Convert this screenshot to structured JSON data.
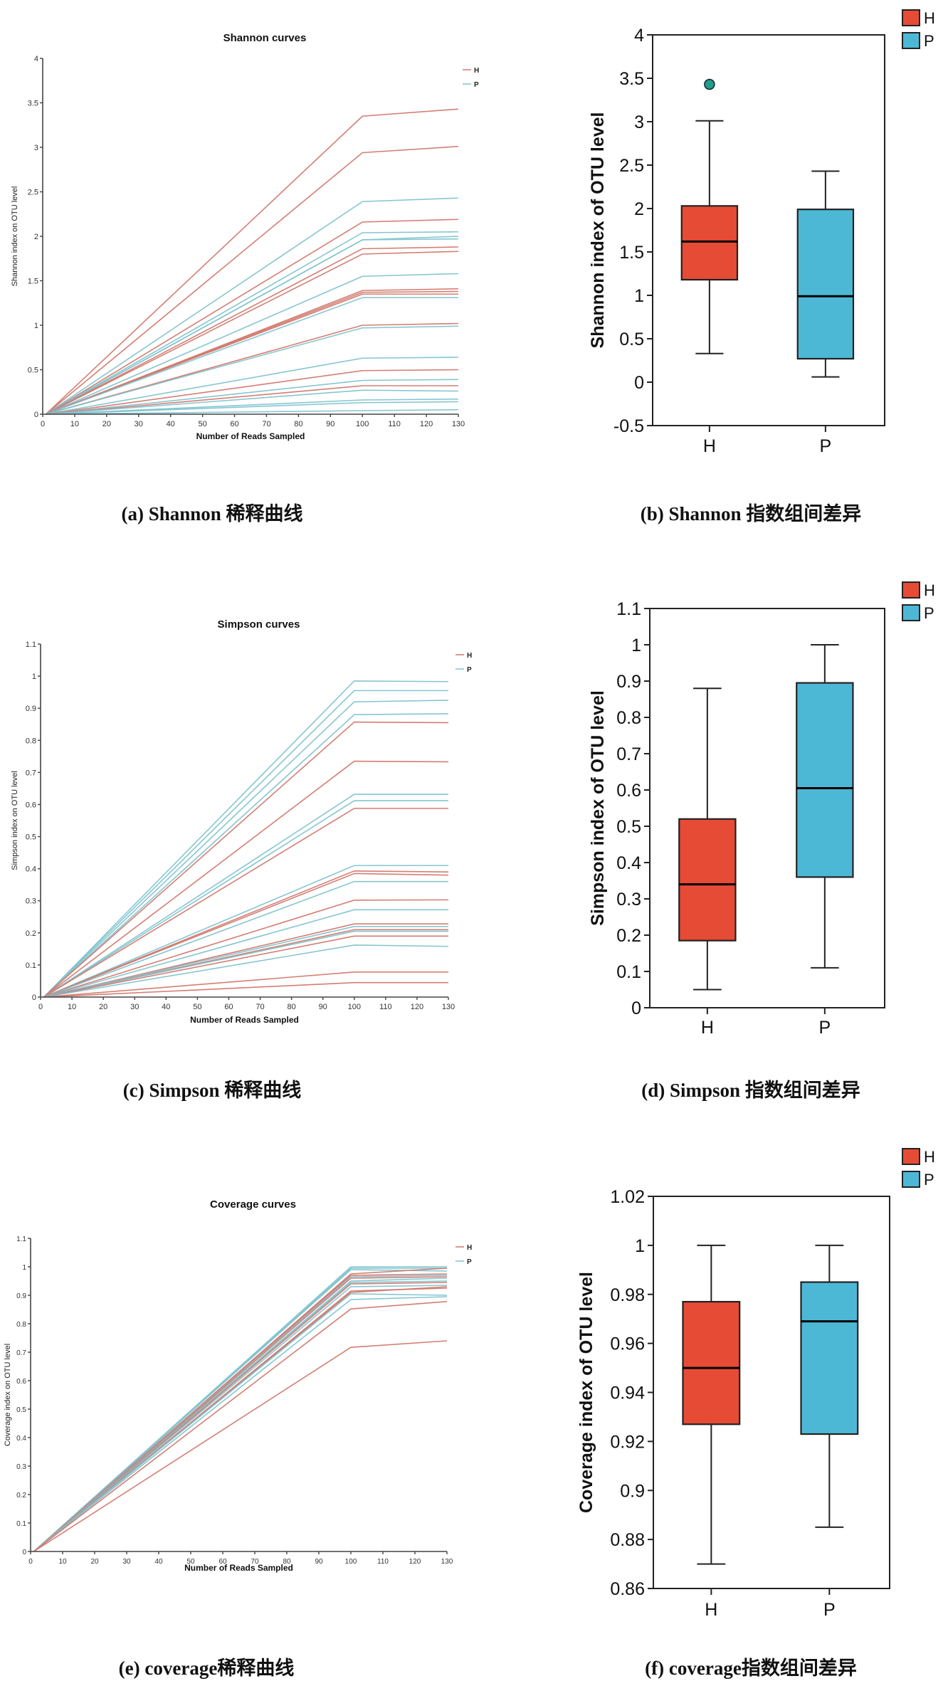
{
  "colors": {
    "H": "#e64b35",
    "P": "#4db8d6",
    "H_line": "#d2776c",
    "P_line": "#7fc3cf",
    "outlier": "#1f9e89",
    "axis": "#222222"
  },
  "captions": {
    "a": "(a) Shannon 稀释曲线",
    "b": "(b) Shannon 指数组间差异",
    "c": "(c) Simpson 稀释曲线",
    "d": "(d) Simpson 指数组间差异",
    "e": "(e) coverage稀释曲线",
    "f": "(f) coverage指数组间差异"
  },
  "chart_data": [
    {
      "id": "a",
      "type": "line",
      "title": "Shannon curves",
      "xlabel": "Number of Reads Sampled",
      "ylabel": "Shannon index on OTU level",
      "xlim": [
        0,
        130
      ],
      "ylim": [
        0,
        4
      ],
      "xticks": [
        0,
        10,
        20,
        30,
        40,
        50,
        60,
        70,
        80,
        90,
        100,
        110,
        120,
        130
      ],
      "yticks": [
        0,
        0.5,
        1,
        1.5,
        2,
        2.5,
        3,
        3.5,
        4
      ],
      "ytick_labels": [
        "0",
        "0.5",
        "1",
        "1.5",
        "2",
        "2.5",
        "3",
        "3.5",
        "4"
      ],
      "legend": [
        "H",
        "P"
      ],
      "legend_position": "top-right",
      "x": [
        1,
        100,
        130
      ],
      "series": [
        {
          "group": "H",
          "values": [
            0,
            3.35,
            3.43
          ]
        },
        {
          "group": "H",
          "values": [
            0,
            2.94,
            3.01
          ]
        },
        {
          "group": "P",
          "values": [
            0,
            2.39,
            2.43
          ]
        },
        {
          "group": "H",
          "values": [
            0,
            2.16,
            2.19
          ]
        },
        {
          "group": "P",
          "values": [
            0,
            2.04,
            2.05
          ]
        },
        {
          "group": "P",
          "values": [
            0,
            1.96,
            2.0
          ]
        },
        {
          "group": "P",
          "values": [
            0,
            1.96,
            1.97
          ]
        },
        {
          "group": "H",
          "values": [
            0,
            1.86,
            1.88
          ]
        },
        {
          "group": "H",
          "values": [
            0,
            1.8,
            1.83
          ]
        },
        {
          "group": "P",
          "values": [
            0,
            1.55,
            1.58
          ]
        },
        {
          "group": "H",
          "values": [
            0,
            1.39,
            1.41
          ]
        },
        {
          "group": "H",
          "values": [
            0,
            1.37,
            1.38
          ]
        },
        {
          "group": "H",
          "values": [
            0,
            1.35,
            1.35
          ]
        },
        {
          "group": "P",
          "values": [
            0,
            1.31,
            1.31
          ]
        },
        {
          "group": "H",
          "values": [
            0,
            1.0,
            1.02
          ]
        },
        {
          "group": "P",
          "values": [
            0,
            0.97,
            0.99
          ]
        },
        {
          "group": "P",
          "values": [
            0,
            0.63,
            0.64
          ]
        },
        {
          "group": "H",
          "values": [
            0,
            0.49,
            0.5
          ]
        },
        {
          "group": "P",
          "values": [
            0,
            0.38,
            0.39
          ]
        },
        {
          "group": "H",
          "values": [
            0,
            0.32,
            0.32
          ]
        },
        {
          "group": "P",
          "values": [
            0,
            0.27,
            0.26
          ]
        },
        {
          "group": "P",
          "values": [
            0,
            0.16,
            0.17
          ]
        },
        {
          "group": "P",
          "values": [
            0,
            0.13,
            0.14
          ]
        },
        {
          "group": "P",
          "values": [
            0,
            0.04,
            0.05
          ]
        }
      ]
    },
    {
      "id": "b",
      "type": "box",
      "title": "",
      "xlabel": "",
      "ylabel": "Shannon index of OTU level",
      "ylim": [
        -0.5,
        4
      ],
      "yticks": [
        -0.5,
        0,
        0.5,
        1,
        1.5,
        2,
        2.5,
        3,
        3.5,
        4
      ],
      "ytick_labels": [
        "-0.5",
        "0",
        "0.5",
        "1",
        "1.5",
        "2",
        "2.5",
        "3",
        "3.5",
        "4"
      ],
      "categories": [
        "H",
        "P"
      ],
      "legend": [
        "H",
        "P"
      ],
      "legend_position": "top-right",
      "boxes": [
        {
          "group": "H",
          "whisker_low": 0.33,
          "q1": 1.18,
          "median": 1.62,
          "q3": 2.03,
          "whisker_high": 3.01,
          "outliers": [
            3.43
          ]
        },
        {
          "group": "P",
          "whisker_low": 0.06,
          "q1": 0.27,
          "median": 0.99,
          "q3": 1.99,
          "whisker_high": 2.43,
          "outliers": []
        }
      ]
    },
    {
      "id": "c",
      "type": "line",
      "title": "Simpson curves",
      "xlabel": "Number of Reads Sampled",
      "ylabel": "Simpson index on OTU level",
      "xlim": [
        0,
        130
      ],
      "ylim": [
        0,
        1.1
      ],
      "xticks": [
        0,
        10,
        20,
        30,
        40,
        50,
        60,
        70,
        80,
        90,
        100,
        110,
        120,
        130
      ],
      "yticks": [
        0,
        0.1,
        0.2,
        0.3,
        0.4,
        0.5,
        0.6,
        0.7,
        0.8,
        0.9,
        1,
        1.1
      ],
      "ytick_labels": [
        "0",
        "0.1",
        "0.2",
        "0.3",
        "0.4",
        "0.5",
        "0.6",
        "0.7",
        "0.8",
        "0.9",
        "1",
        "1.1"
      ],
      "legend": [
        "H",
        "P"
      ],
      "legend_position": "top-right",
      "x": [
        1,
        100,
        130
      ],
      "series": [
        {
          "group": "P",
          "values": [
            0,
            0.985,
            0.983
          ]
        },
        {
          "group": "P",
          "values": [
            0,
            0.955,
            0.955
          ]
        },
        {
          "group": "P",
          "values": [
            0,
            0.92,
            0.925
          ]
        },
        {
          "group": "P",
          "values": [
            0,
            0.88,
            0.883
          ]
        },
        {
          "group": "H",
          "values": [
            0,
            0.857,
            0.855
          ]
        },
        {
          "group": "H",
          "values": [
            0,
            0.735,
            0.733
          ]
        },
        {
          "group": "P",
          "values": [
            0,
            0.632,
            0.632
          ]
        },
        {
          "group": "P",
          "values": [
            0,
            0.612,
            0.612
          ]
        },
        {
          "group": "H",
          "values": [
            0,
            0.588,
            0.588
          ]
        },
        {
          "group": "P",
          "values": [
            0,
            0.41,
            0.41
          ]
        },
        {
          "group": "H",
          "values": [
            0,
            0.393,
            0.39
          ]
        },
        {
          "group": "H",
          "values": [
            0,
            0.385,
            0.38
          ]
        },
        {
          "group": "P",
          "values": [
            0,
            0.36,
            0.36
          ]
        },
        {
          "group": "H",
          "values": [
            0,
            0.302,
            0.303
          ]
        },
        {
          "group": "P",
          "values": [
            0,
            0.272,
            0.272
          ]
        },
        {
          "group": "H",
          "values": [
            0,
            0.228,
            0.228
          ]
        },
        {
          "group": "P",
          "values": [
            0,
            0.22,
            0.22
          ]
        },
        {
          "group": "H",
          "values": [
            0,
            0.21,
            0.21
          ]
        },
        {
          "group": "P",
          "values": [
            0,
            0.205,
            0.205
          ]
        },
        {
          "group": "H",
          "values": [
            0,
            0.19,
            0.19
          ]
        },
        {
          "group": "P",
          "values": [
            0,
            0.162,
            0.158
          ]
        },
        {
          "group": "H",
          "values": [
            0,
            0.078,
            0.078
          ]
        },
        {
          "group": "H",
          "values": [
            0,
            0.045,
            0.045
          ]
        }
      ]
    },
    {
      "id": "d",
      "type": "box",
      "title": "",
      "xlabel": "",
      "ylabel": "Simpson index of OTU level",
      "ylim": [
        0,
        1.1
      ],
      "yticks": [
        0,
        0.1,
        0.2,
        0.3,
        0.4,
        0.5,
        0.6,
        0.7,
        0.8,
        0.9,
        1,
        1.1
      ],
      "ytick_labels": [
        "0",
        "0.1",
        "0.2",
        "0.3",
        "0.4",
        "0.5",
        "0.6",
        "0.7",
        "0.8",
        "0.9",
        "1",
        "1.1"
      ],
      "categories": [
        "H",
        "P"
      ],
      "legend": [
        "H",
        "P"
      ],
      "legend_position": "top-right",
      "boxes": [
        {
          "group": "H",
          "whisker_low": 0.05,
          "q1": 0.185,
          "median": 0.34,
          "q3": 0.52,
          "whisker_high": 0.88,
          "outliers": []
        },
        {
          "group": "P",
          "whisker_low": 0.11,
          "q1": 0.36,
          "median": 0.605,
          "q3": 0.895,
          "whisker_high": 1.0,
          "outliers": []
        }
      ]
    },
    {
      "id": "e",
      "type": "line",
      "title": "Coverage curves",
      "xlabel": "Number of Reads Sampled",
      "ylabel": "Coverage index on OTU level",
      "xlim": [
        0,
        130
      ],
      "ylim": [
        0,
        1.1
      ],
      "xticks": [
        0,
        10,
        20,
        30,
        40,
        50,
        60,
        70,
        80,
        90,
        100,
        110,
        120,
        130
      ],
      "yticks": [
        0,
        0.1,
        0.2,
        0.3,
        0.4,
        0.5,
        0.6,
        0.7,
        0.8,
        0.9,
        1,
        1.1
      ],
      "ytick_labels": [
        "0",
        "0.1",
        "0.2",
        "0.3",
        "0.4",
        "0.5",
        "0.6",
        "0.7",
        "0.8",
        "0.9",
        "1",
        "1.1"
      ],
      "legend": [
        "H",
        "P"
      ],
      "legend_position": "top-right",
      "x": [
        1,
        100,
        130
      ],
      "series": [
        {
          "group": "P",
          "values": [
            0,
            1.0,
            1.0
          ]
        },
        {
          "group": "P",
          "values": [
            0,
            0.995,
            0.995
          ]
        },
        {
          "group": "P",
          "values": [
            0,
            0.99,
            0.985
          ]
        },
        {
          "group": "H",
          "values": [
            0,
            0.975,
            0.995
          ]
        },
        {
          "group": "H",
          "values": [
            0,
            0.97,
            0.975
          ]
        },
        {
          "group": "P",
          "values": [
            0,
            0.965,
            0.97
          ]
        },
        {
          "group": "H",
          "values": [
            0,
            0.96,
            0.965
          ]
        },
        {
          "group": "P",
          "values": [
            0,
            0.95,
            0.96
          ]
        },
        {
          "group": "P",
          "values": [
            0,
            0.945,
            0.95
          ]
        },
        {
          "group": "H",
          "values": [
            0,
            0.94,
            0.945
          ]
        },
        {
          "group": "P",
          "values": [
            0,
            0.93,
            0.935
          ]
        },
        {
          "group": "H",
          "values": [
            0,
            0.915,
            0.925
          ]
        },
        {
          "group": "H",
          "values": [
            0,
            0.91,
            0.93
          ]
        },
        {
          "group": "P",
          "values": [
            0,
            0.905,
            0.9
          ]
        },
        {
          "group": "P",
          "values": [
            0,
            0.885,
            0.895
          ]
        },
        {
          "group": "H",
          "values": [
            0,
            0.852,
            0.878
          ]
        },
        {
          "group": "H",
          "values": [
            0,
            0.717,
            0.74
          ]
        }
      ]
    },
    {
      "id": "f",
      "type": "box",
      "title": "",
      "xlabel": "",
      "ylabel": "Coverage index of OTU level",
      "ylim": [
        0.86,
        1.02
      ],
      "yticks": [
        0.86,
        0.88,
        0.9,
        0.92,
        0.94,
        0.96,
        0.98,
        1,
        1.02
      ],
      "ytick_labels": [
        "0.86",
        "0.88",
        "0.9",
        "0.92",
        "0.94",
        "0.96",
        "0.98",
        "1",
        "1.02"
      ],
      "categories": [
        "H",
        "P"
      ],
      "legend": [
        "H",
        "P"
      ],
      "legend_position": "top-right",
      "boxes": [
        {
          "group": "H",
          "whisker_low": 0.87,
          "q1": 0.927,
          "median": 0.95,
          "q3": 0.977,
          "whisker_high": 1.0,
          "outliers": []
        },
        {
          "group": "P",
          "whisker_low": 0.885,
          "q1": 0.923,
          "median": 0.969,
          "q3": 0.985,
          "whisker_high": 1.0,
          "outliers": []
        }
      ]
    }
  ]
}
